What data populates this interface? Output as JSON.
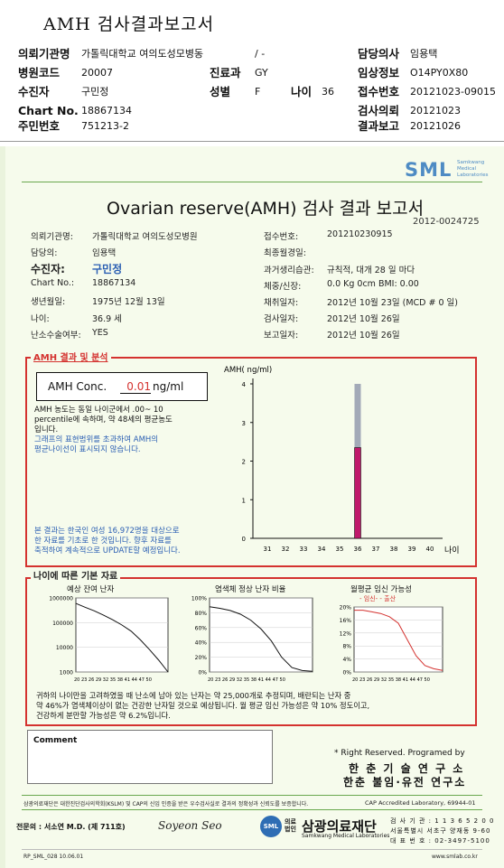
{
  "header": {
    "title": "AMH 검사결과보고서",
    "rows": [
      {
        "label": "의뢰기관명",
        "value": "가톨릭대학교 여의도성모병동",
        "mid_label": "",
        "mid_value": "/ -",
        "right_label": "담당의사",
        "right_value": "임용택"
      },
      {
        "label": "병원코드",
        "value": "20007",
        "mid_label": "진료과",
        "mid_value": "GY",
        "right_label": "임상정보",
        "right_value": "O14PY0X80"
      },
      {
        "label": "수진자",
        "value": "구민정",
        "mid_label": "성별",
        "mid_value": "F",
        "extra_label": "나이",
        "extra_value": "36",
        "right_label": "접수번호",
        "right_value": "20121023-09015"
      },
      {
        "label": "Chart No.",
        "value": "18867134",
        "right_label": "검사의뢰",
        "right_value": "20121023"
      },
      {
        "label": "주민번호",
        "value": "751213-2",
        "right_label": "결과보고",
        "right_value": "20121026"
      }
    ]
  },
  "report": {
    "logo": "SML",
    "logo_sub": "Samkwang Medical Laboratories",
    "title": "Ovarian reserve(AMH) 검사 결과 보고서",
    "report_no": "2012-0024725",
    "left_info": [
      {
        "label": "의뢰기관명:",
        "value": "가톨릭대학교 여의도성모병원"
      },
      {
        "label": "담당의:",
        "value": "임용택"
      },
      {
        "label": "수진자:",
        "value": "구민정"
      },
      {
        "label": "Chart No.:",
        "value": "18867134"
      },
      {
        "label": "생년월일:",
        "value": "1975년 12월 13일"
      },
      {
        "label": "나이:",
        "value": "36.9 세"
      },
      {
        "label": "난소수술여부:",
        "value": "YES"
      }
    ],
    "right_info": [
      {
        "label": "접수번호:",
        "value": "201210230915"
      },
      {
        "label": "최종월경일:",
        "value": ""
      },
      {
        "label": "과거생리습관:",
        "value": "규칙적, 대개  28 일 마다"
      },
      {
        "label": "체중/신장:",
        "value": "0.0 Kg      0cm   BMI:   0.00"
      },
      {
        "label": "채취일자:",
        "value": "2012년 10월 23일  (MCD # 0 일)"
      },
      {
        "label": "검사일자:",
        "value": "2012년 10월 26일"
      },
      {
        "label": "보고일자:",
        "value": "2012년 10월 26일"
      }
    ],
    "result_title": "AMH 결과 및 분석",
    "conc_label": "AMH Conc.",
    "conc_value": "0.01",
    "conc_unit": "ng/ml",
    "analysis_lines": [
      "AMH 농도는 동일 나이군에서  .00~ 10",
      "percentile에 속하며, 약  48세의 평균농도",
      "입니다.",
      "그래프의 표현범위를 초과하여 AMH의",
      "평균나이선이 표시되지 않습니다."
    ],
    "notice_lines": [
      "본 결과는 한국인 여성 16,972명을 대상으로",
      "한 자료를 기초로 한 것입니다. 향후 자료를",
      "축적하여 계속적으로 UPDATE할 예정입니다."
    ],
    "age_title": "나이에 따른 기본 자료",
    "graph_titles": [
      "예상 잔여 난자",
      "염색체 정상 난자 비율",
      "월평균 임신 가능성"
    ],
    "graph3_legend": "- 임신-   - 출산",
    "graph1_ticks": [
      "1000000",
      "100000",
      "10000",
      "1000"
    ],
    "graph2_ticks": [
      "100%",
      "80%",
      "60%",
      "40%",
      "20%",
      "0%"
    ],
    "graph3_ticks": [
      "20%",
      "16%",
      "12%",
      "8%",
      "4%",
      "0%"
    ],
    "mini_xaxis": "20 23 26 29 32 35 38 41 44 47 50",
    "summary_lines": [
      "귀하의 나이만을 고려하였을 때 난소에 남아 있는 난자는 약      25,000개로 추정되며, 배란되는 난자 중",
      "약  46%가 염색체이상이 없는 건강한 난자일 것으로 예상됩니다. 월 평균 임신 가능성은 약   10% 정도이고,",
      "건강하게 분만할 가능성은 약  6.2%입니다."
    ],
    "comment_label": "Comment",
    "rights": "* Right Reserved. Programed by",
    "lab1": "한 춘  기 술  연 구 소",
    "lab2": "한춘 불임·유전 연구소",
    "cert_text": "삼광의료재단은 대한진단검사의학회(KSLM) 및 CAP의 신임 인증을 받은 우수검사실로 결과의 정확성과 신뢰도를 보증합니다.",
    "cap": "CAP  Accredited  Laboratory,  69944-01",
    "signer_label": "전문의 : 서소연 M.D. (제 711호)",
    "signature": "Soyeon Seo",
    "corp": "의료법인",
    "foundation": "삼광의료재단",
    "foundation_en": "Samkwang Medical Laboratories",
    "contact": [
      "검 사 기 관 : 1 1 3 6 5 2 0 0",
      "서울특별시 서초구 양재동 9-60",
      "대 표 번 호 : 02-3497-5100"
    ],
    "form_code": "RP_SML_028  10.06.01",
    "website": "www.smlab.co.kr"
  },
  "chart_data": [
    {
      "type": "bar",
      "ylabel": "AMH( ng/ml)",
      "xlabel": "나이",
      "categories": [
        "31",
        "32",
        "33",
        "34",
        "35",
        "36",
        "37",
        "38",
        "39",
        "40"
      ],
      "series": [
        {
          "values": [
            0,
            0,
            0,
            0,
            0,
            4.0,
            0,
            0,
            0,
            0
          ],
          "color": "#a3aab8"
        },
        {
          "values": [
            0,
            0,
            0,
            0,
            0,
            2.35,
            0,
            0,
            0,
            0
          ],
          "color": "#c0196b"
        }
      ],
      "yticks": [
        "0",
        "1",
        "2",
        "3",
        "4"
      ],
      "ylim": [
        0,
        4
      ]
    },
    {
      "type": "line",
      "title": "예상 잔여 난자",
      "x": [
        20,
        23,
        26,
        29,
        32,
        35,
        38,
        41,
        44,
        47,
        50
      ],
      "y": [
        600000,
        420000,
        300000,
        200000,
        130000,
        80000,
        45000,
        20000,
        8000,
        3000,
        1000
      ]
    },
    {
      "type": "line",
      "title": "염색체 정상 난자 비율",
      "x": [
        20,
        23,
        26,
        29,
        32,
        35,
        38,
        41,
        44,
        47,
        50
      ],
      "y": [
        88,
        86,
        83,
        78,
        70,
        58,
        42,
        20,
        6,
        2,
        1
      ]
    },
    {
      "type": "line",
      "title": "월평균 임신 가능성",
      "x": [
        20,
        23,
        26,
        29,
        32,
        35,
        38,
        41,
        44,
        47,
        50
      ],
      "y": [
        19,
        19,
        18.5,
        18,
        17,
        15,
        10,
        5,
        2,
        1,
        0.5
      ]
    }
  ]
}
